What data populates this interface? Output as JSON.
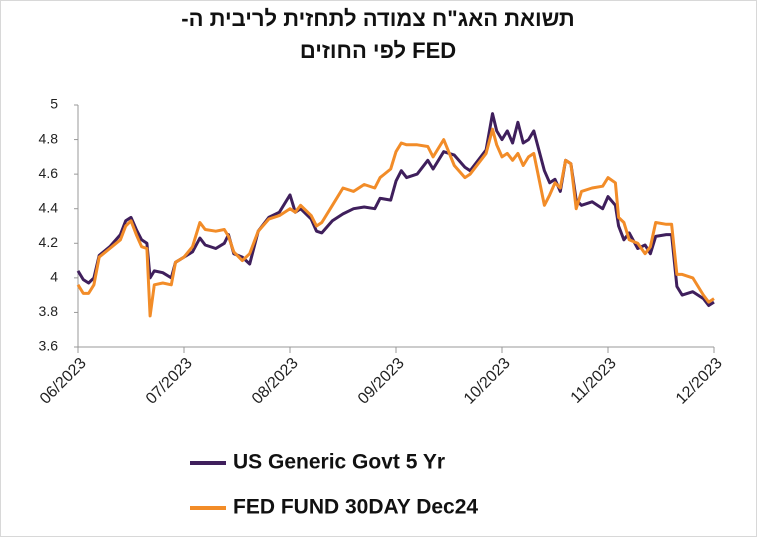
{
  "chart_data": {
    "type": "line",
    "title": [
      "תשואת האג\"ח  צמודה לתחזית לריבית ה-",
      "FED לפי החוזים"
    ],
    "x": [
      0,
      0.05,
      0.1,
      0.15,
      0.2,
      0.3,
      0.4,
      0.45,
      0.5,
      0.55,
      0.6,
      0.65,
      0.68,
      0.72,
      0.8,
      0.88,
      0.92,
      1,
      1.08,
      1.15,
      1.2,
      1.3,
      1.38,
      1.42,
      1.47,
      1.55,
      1.62,
      1.7,
      1.8,
      1.9,
      2,
      2.05,
      2.1,
      2.2,
      2.25,
      2.3,
      2.4,
      2.5,
      2.6,
      2.7,
      2.8,
      2.85,
      2.95,
      3,
      3.05,
      3.1,
      3.2,
      3.3,
      3.35,
      3.45,
      3.55,
      3.65,
      3.7,
      3.85,
      3.91,
      3.95,
      4,
      4.05,
      4.1,
      4.15,
      4.2,
      4.25,
      4.3,
      4.4,
      4.45,
      4.5,
      4.55,
      4.6,
      4.65,
      4.7,
      4.75,
      4.85,
      4.95,
      5,
      5.07,
      5.1,
      5.15,
      5.2,
      5.28,
      5.35,
      5.4,
      5.45,
      5.55,
      5.6,
      5.65,
      5.7,
      5.8,
      5.9,
      5.95,
      6
    ],
    "series": [
      {
        "name": "US Generic Govt 5 Yr",
        "color": "#3f1f5c",
        "values": [
          4.04,
          3.99,
          3.97,
          4.0,
          4.13,
          4.18,
          4.25,
          4.33,
          4.35,
          4.28,
          4.22,
          4.2,
          4.0,
          4.04,
          4.03,
          4.0,
          4.09,
          4.12,
          4.15,
          4.23,
          4.19,
          4.17,
          4.2,
          4.25,
          4.14,
          4.12,
          4.08,
          4.27,
          4.35,
          4.38,
          4.48,
          4.38,
          4.4,
          4.34,
          4.27,
          4.26,
          4.33,
          4.37,
          4.4,
          4.41,
          4.4,
          4.46,
          4.45,
          4.56,
          4.62,
          4.58,
          4.6,
          4.68,
          4.63,
          4.73,
          4.71,
          4.64,
          4.62,
          4.74,
          4.95,
          4.85,
          4.8,
          4.85,
          4.78,
          4.9,
          4.78,
          4.8,
          4.85,
          4.62,
          4.55,
          4.57,
          4.5,
          4.68,
          4.66,
          4.45,
          4.42,
          4.44,
          4.4,
          4.47,
          4.42,
          4.3,
          4.22,
          4.26,
          4.17,
          4.19,
          4.14,
          4.24,
          4.25,
          4.25,
          3.95,
          3.9,
          3.92,
          3.88,
          3.84,
          3.86
        ]
      },
      {
        "name": "FED FUND 30DAY Dec24",
        "color": "#f28c28",
        "values": [
          3.96,
          3.91,
          3.91,
          3.96,
          4.12,
          4.17,
          4.22,
          4.3,
          4.33,
          4.25,
          4.18,
          4.17,
          3.78,
          3.96,
          3.97,
          3.96,
          4.09,
          4.12,
          4.18,
          4.32,
          4.28,
          4.27,
          4.28,
          4.24,
          4.15,
          4.1,
          4.14,
          4.27,
          4.34,
          4.36,
          4.4,
          4.38,
          4.42,
          4.36,
          4.3,
          4.32,
          4.42,
          4.52,
          4.5,
          4.54,
          4.52,
          4.58,
          4.63,
          4.73,
          4.78,
          4.77,
          4.77,
          4.76,
          4.7,
          4.8,
          4.65,
          4.58,
          4.6,
          4.72,
          4.86,
          4.77,
          4.7,
          4.72,
          4.68,
          4.72,
          4.65,
          4.7,
          4.72,
          4.42,
          4.48,
          4.55,
          4.52,
          4.68,
          4.66,
          4.4,
          4.5,
          4.52,
          4.53,
          4.58,
          4.55,
          4.35,
          4.32,
          4.22,
          4.2,
          4.14,
          4.18,
          4.32,
          4.31,
          4.31,
          4.02,
          4.02,
          4.0,
          3.9,
          3.86,
          3.88
        ]
      }
    ],
    "xlim": [
      0,
      6
    ],
    "xticks": [
      {
        "value": 0,
        "label": "06/2023"
      },
      {
        "value": 1,
        "label": "07/2023"
      },
      {
        "value": 2,
        "label": "08/2023"
      },
      {
        "value": 3,
        "label": "09/2023"
      },
      {
        "value": 4,
        "label": "10/2023"
      },
      {
        "value": 5,
        "label": "11/2023"
      },
      {
        "value": 6,
        "label": "12/2023"
      }
    ],
    "ylim": [
      3.6,
      5
    ],
    "yticks": [
      3.6,
      3.8,
      4,
      4.2,
      4.4,
      4.6,
      4.8,
      5
    ],
    "grid": false
  }
}
